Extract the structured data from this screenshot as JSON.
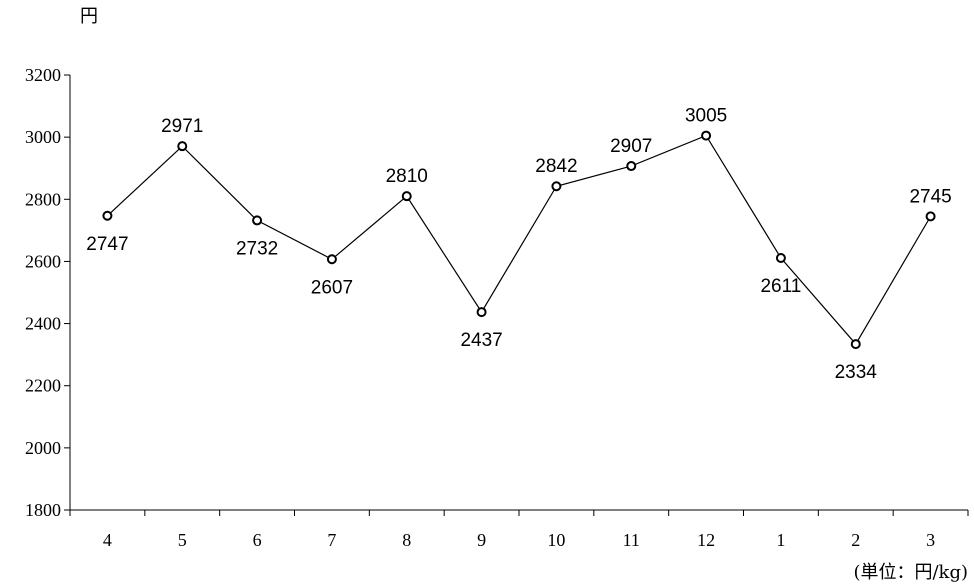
{
  "chart_data": {
    "type": "line",
    "title": "",
    "xlabel": "",
    "ylabel": "円",
    "unit_note": "(単位：円/kg)",
    "categories": [
      "4",
      "5",
      "6",
      "7",
      "8",
      "9",
      "10",
      "11",
      "12",
      "1",
      "2",
      "3"
    ],
    "series": [
      {
        "values": [
          2747,
          2971,
          2732,
          2607,
          2810,
          2437,
          2842,
          2907,
          3005,
          2611,
          2334,
          2745
        ]
      }
    ],
    "data_labels": [
      "2747",
      "2971",
      "2732",
      "2607",
      "2810",
      "2437",
      "2842",
      "2907",
      "3005",
      "2611",
      "2334",
      "2745"
    ],
    "label_position": [
      "below",
      "above",
      "below",
      "below",
      "above",
      "below",
      "above",
      "above",
      "above",
      "below",
      "below",
      "above"
    ],
    "ylim": [
      1800,
      3200
    ],
    "yticks": [
      "1800",
      "2000",
      "2200",
      "2400",
      "2600",
      "2800",
      "3000",
      "3200"
    ],
    "grid": false,
    "legend": "none",
    "line_color": "#000000",
    "marker": "hollow-circle"
  }
}
